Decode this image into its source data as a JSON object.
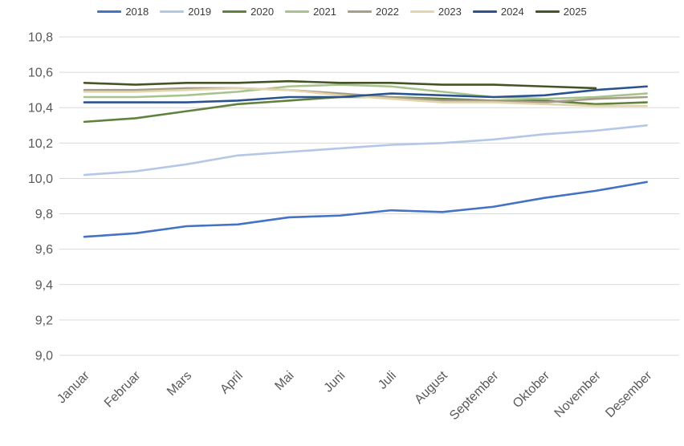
{
  "chart_data": {
    "type": "line",
    "title": "",
    "categories": [
      "Januar",
      "Februar",
      "Mars",
      "April",
      "Mai",
      "Juni",
      "Juli",
      "August",
      "September",
      "Oktober",
      "November",
      "Desember"
    ],
    "y_axis": {
      "min": 9.0,
      "max": 10.8,
      "step": 0.2,
      "tick_labels": [
        "10,8",
        "10,6",
        "10,4",
        "10,2",
        "10,0",
        "9,8",
        "9,6",
        "9,4",
        "9,2",
        "9,0"
      ],
      "decimal_separator": ","
    },
    "grid": true,
    "gridline_color": "#d9d9d9",
    "axis_text_color": "#595959",
    "legend_position": "top",
    "series": [
      {
        "name": "2018",
        "color": "#4472c4",
        "values": [
          9.67,
          9.69,
          9.73,
          9.74,
          9.78,
          9.79,
          9.82,
          9.81,
          9.84,
          9.89,
          9.93,
          9.98
        ]
      },
      {
        "name": "2019",
        "color": "#b4c7e7",
        "values": [
          10.02,
          10.04,
          10.08,
          10.13,
          10.15,
          10.17,
          10.19,
          10.2,
          10.22,
          10.25,
          10.27,
          10.3
        ]
      },
      {
        "name": "2020",
        "color": "#63813e",
        "values": [
          10.32,
          10.34,
          10.38,
          10.42,
          10.44,
          10.46,
          10.46,
          10.45,
          10.44,
          10.44,
          10.42,
          10.43
        ]
      },
      {
        "name": "2021",
        "color": "#a8c48c",
        "values": [
          10.46,
          10.46,
          10.47,
          10.49,
          10.52,
          10.53,
          10.52,
          10.49,
          10.46,
          10.45,
          10.46,
          10.48
        ]
      },
      {
        "name": "2022",
        "color": "#a79e89",
        "values": [
          10.5,
          10.5,
          10.51,
          10.51,
          10.5,
          10.48,
          10.46,
          10.44,
          10.44,
          10.43,
          10.45,
          10.46
        ]
      },
      {
        "name": "2023",
        "color": "#e2d5ac",
        "values": [
          10.49,
          10.49,
          10.5,
          10.51,
          10.5,
          10.47,
          10.45,
          10.43,
          10.43,
          10.42,
          10.41,
          10.41
        ]
      },
      {
        "name": "2024",
        "color": "#2a5390",
        "values": [
          10.43,
          10.43,
          10.43,
          10.44,
          10.46,
          10.46,
          10.48,
          10.47,
          10.46,
          10.47,
          10.5,
          10.52
        ]
      },
      {
        "name": "2025",
        "color": "#455426",
        "values": [
          10.54,
          10.53,
          10.54,
          10.54,
          10.55,
          10.54,
          10.54,
          10.53,
          10.53,
          10.52,
          10.51,
          null
        ]
      }
    ]
  }
}
